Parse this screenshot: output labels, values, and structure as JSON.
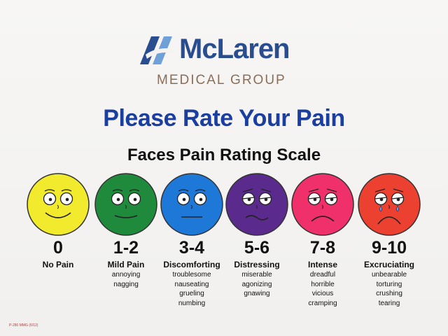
{
  "brand": {
    "name": "McLaren",
    "subtitle": "MEDICAL GROUP",
    "colors": {
      "primary": "#2a4d8f",
      "accent": "#6fa0d8",
      "subtitle": "#8a6e58"
    }
  },
  "headline": "Please Rate Your Pain",
  "scale_title": "Faces Pain Rating Scale",
  "levels": [
    {
      "range": "0",
      "label": "No Pain",
      "descriptors": [],
      "face_color": "#f2ea2c",
      "expression": "smile"
    },
    {
      "range": "1-2",
      "label": "Mild Pain",
      "descriptors": [
        "annoying",
        "nagging"
      ],
      "face_color": "#1f8a3c",
      "expression": "slight-smile"
    },
    {
      "range": "3-4",
      "label": "Discomforting",
      "descriptors": [
        "troublesome",
        "nauseating",
        "grueling",
        "numbing"
      ],
      "face_color": "#1e78d8",
      "expression": "neutral"
    },
    {
      "range": "5-6",
      "label": "Distressing",
      "descriptors": [
        "miserable",
        "agonizing",
        "gnawing"
      ],
      "face_color": "#5a2a8c",
      "expression": "wavy"
    },
    {
      "range": "7-8",
      "label": "Intense",
      "descriptors": [
        "dreadful",
        "horrible",
        "vicious",
        "cramping"
      ],
      "face_color": "#f0306a",
      "expression": "frown"
    },
    {
      "range": "9-10",
      "label": "Excruciating",
      "descriptors": [
        "unbearable",
        "torturing",
        "crushing",
        "tearing"
      ],
      "face_color": "#ec4030",
      "expression": "crying"
    }
  ],
  "footnote": "P-280 MMG (6/12)"
}
